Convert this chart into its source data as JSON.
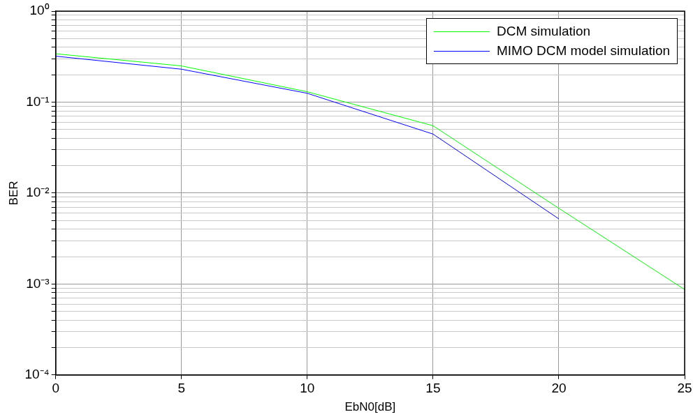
{
  "chart_data": {
    "type": "line",
    "xlabel": "EbN0[dB]",
    "ylabel": "BER",
    "x": [
      0,
      5,
      10,
      15,
      20,
      25
    ],
    "series": [
      {
        "name": "DCM simulation",
        "color": "#00ff00",
        "values": [
          0.34,
          0.25,
          0.13,
          0.055,
          0.0068,
          0.00087
        ]
      },
      {
        "name": "MIMO DCM model simulation",
        "color": "#0000ff",
        "values": [
          0.32,
          0.23,
          0.125,
          0.0445,
          0.0052,
          null
        ]
      }
    ],
    "log": "y",
    "xlim": [
      0,
      25
    ],
    "xticks": [
      0,
      5,
      10,
      15,
      20,
      25
    ],
    "ylim": [
      0.0001,
      1
    ],
    "yticks": [
      {
        "value": 0.0001,
        "label": "10⁻⁴"
      },
      {
        "value": 0.0002,
        "label": null
      },
      {
        "value": 0.0003,
        "label": null
      },
      {
        "value": 0.0004,
        "label": null
      },
      {
        "value": 0.0005,
        "label": null
      },
      {
        "value": 0.0006,
        "label": null
      },
      {
        "value": 0.0007,
        "label": null
      },
      {
        "value": 0.0008,
        "label": null
      },
      {
        "value": 0.0009,
        "label": null
      },
      {
        "value": 0.001,
        "label": "10⁻³"
      },
      {
        "value": 0.002,
        "label": null
      },
      {
        "value": 0.003,
        "label": null
      },
      {
        "value": 0.004,
        "label": null
      },
      {
        "value": 0.005,
        "label": null
      },
      {
        "value": 0.006,
        "label": null
      },
      {
        "value": 0.007,
        "label": null
      },
      {
        "value": 0.008,
        "label": null
      },
      {
        "value": 0.009,
        "label": null
      },
      {
        "value": 0.01,
        "label": "10⁻²"
      },
      {
        "value": 0.02,
        "label": null
      },
      {
        "value": 0.03,
        "label": null
      },
      {
        "value": 0.04,
        "label": null
      },
      {
        "value": 0.05,
        "label": null
      },
      {
        "value": 0.06,
        "label": null
      },
      {
        "value": 0.07,
        "label": null
      },
      {
        "value": 0.08,
        "label": null
      },
      {
        "value": 0.09,
        "label": null
      },
      {
        "value": 0.1,
        "label": "10⁻¹"
      },
      {
        "value": 0.2,
        "label": null
      },
      {
        "value": 0.3,
        "label": null
      },
      {
        "value": 0.4,
        "label": null
      },
      {
        "value": 0.5,
        "label": null
      },
      {
        "value": 0.6,
        "label": null
      },
      {
        "value": 0.7,
        "label": null
      },
      {
        "value": 0.8,
        "label": null
      },
      {
        "value": 0.9,
        "label": null
      },
      {
        "value": 1,
        "label": "10⁰"
      }
    ],
    "grid": true,
    "legend": "top right",
    "marker": "none",
    "line_style": "solid"
  }
}
